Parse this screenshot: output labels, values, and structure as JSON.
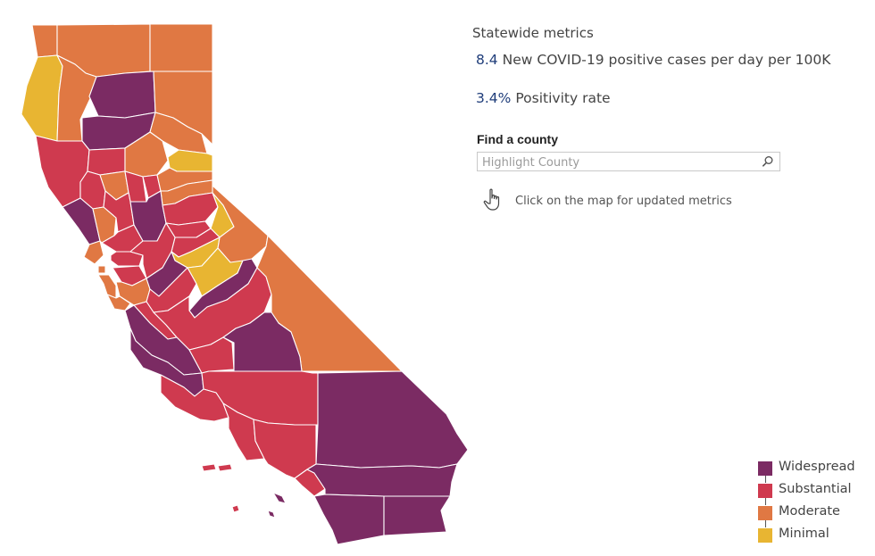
{
  "colors": {
    "widespread": "#7b2b63",
    "substantial": "#cf3a4f",
    "moderate": "#e07843",
    "minimal": "#e8b532",
    "metric_value": "#1f3d7a"
  },
  "metrics": {
    "title": "Statewide metrics",
    "cases_value": "8.4",
    "cases_label": "New COVID-19 positive cases per day per 100K",
    "positivity_value": "3.4%",
    "positivity_label": "Positivity rate"
  },
  "search": {
    "label": "Find a county",
    "placeholder": "Highlight County",
    "icon": "search-icon"
  },
  "hint": {
    "icon": "pointer-hand-icon",
    "text": "Click on the map for updated metrics"
  },
  "legend": [
    {
      "tier": "widespread",
      "label": "Widespread"
    },
    {
      "tier": "substantial",
      "label": "Substantial"
    },
    {
      "tier": "moderate",
      "label": "Moderate"
    },
    {
      "tier": "minimal",
      "label": "Minimal"
    }
  ],
  "counties": [
    {
      "id": "del-norte",
      "tier": "moderate"
    },
    {
      "id": "siskiyou",
      "tier": "moderate"
    },
    {
      "id": "modoc",
      "tier": "moderate"
    },
    {
      "id": "humboldt",
      "tier": "minimal"
    },
    {
      "id": "trinity",
      "tier": "moderate"
    },
    {
      "id": "shasta",
      "tier": "widespread"
    },
    {
      "id": "lassen",
      "tier": "moderate"
    },
    {
      "id": "tehama",
      "tier": "widespread"
    },
    {
      "id": "plumas",
      "tier": "moderate"
    },
    {
      "id": "mendocino",
      "tier": "substantial"
    },
    {
      "id": "glenn",
      "tier": "substantial"
    },
    {
      "id": "butte",
      "tier": "moderate"
    },
    {
      "id": "sierra",
      "tier": "minimal"
    },
    {
      "id": "lake",
      "tier": "substantial"
    },
    {
      "id": "colusa",
      "tier": "moderate"
    },
    {
      "id": "sutter",
      "tier": "substantial"
    },
    {
      "id": "yuba",
      "tier": "substantial"
    },
    {
      "id": "nevada",
      "tier": "moderate"
    },
    {
      "id": "placer",
      "tier": "moderate"
    },
    {
      "id": "sonoma",
      "tier": "widespread"
    },
    {
      "id": "napa",
      "tier": "moderate"
    },
    {
      "id": "yolo",
      "tier": "substantial"
    },
    {
      "id": "sacramento",
      "tier": "widespread"
    },
    {
      "id": "el-dorado",
      "tier": "substantial"
    },
    {
      "id": "alpine",
      "tier": "minimal"
    },
    {
      "id": "amador",
      "tier": "substantial"
    },
    {
      "id": "calaveras",
      "tier": "substantial"
    },
    {
      "id": "tuolumne",
      "tier": "minimal"
    },
    {
      "id": "mono",
      "tier": "moderate"
    },
    {
      "id": "marin",
      "tier": "moderate"
    },
    {
      "id": "solano",
      "tier": "substantial"
    },
    {
      "id": "contra-costa",
      "tier": "substantial"
    },
    {
      "id": "san-joaquin",
      "tier": "substantial"
    },
    {
      "id": "san-francisco",
      "tier": "moderate"
    },
    {
      "id": "san-mateo",
      "tier": "moderate"
    },
    {
      "id": "alameda",
      "tier": "substantial"
    },
    {
      "id": "santa-clara",
      "tier": "moderate"
    },
    {
      "id": "santa-cruz",
      "tier": "moderate"
    },
    {
      "id": "stanislaus",
      "tier": "widespread"
    },
    {
      "id": "mariposa",
      "tier": "minimal"
    },
    {
      "id": "merced",
      "tier": "substantial"
    },
    {
      "id": "madera",
      "tier": "widespread"
    },
    {
      "id": "san-benito",
      "tier": "substantial"
    },
    {
      "id": "fresno",
      "tier": "substantial"
    },
    {
      "id": "inyo",
      "tier": "moderate"
    },
    {
      "id": "monterey",
      "tier": "widespread"
    },
    {
      "id": "kings",
      "tier": "substantial"
    },
    {
      "id": "tulare",
      "tier": "widespread"
    },
    {
      "id": "san-luis-obispo",
      "tier": "widespread"
    },
    {
      "id": "kern",
      "tier": "substantial"
    },
    {
      "id": "san-bernardino",
      "tier": "widespread"
    },
    {
      "id": "santa-barbara",
      "tier": "substantial"
    },
    {
      "id": "ventura",
      "tier": "substantial"
    },
    {
      "id": "los-angeles",
      "tier": "substantial"
    },
    {
      "id": "orange",
      "tier": "substantial"
    },
    {
      "id": "riverside",
      "tier": "widespread"
    },
    {
      "id": "san-diego",
      "tier": "widespread"
    },
    {
      "id": "imperial",
      "tier": "widespread"
    },
    {
      "id": "channel-islands",
      "tier": "substantial"
    },
    {
      "id": "catalina-island",
      "tier": "widespread"
    }
  ]
}
